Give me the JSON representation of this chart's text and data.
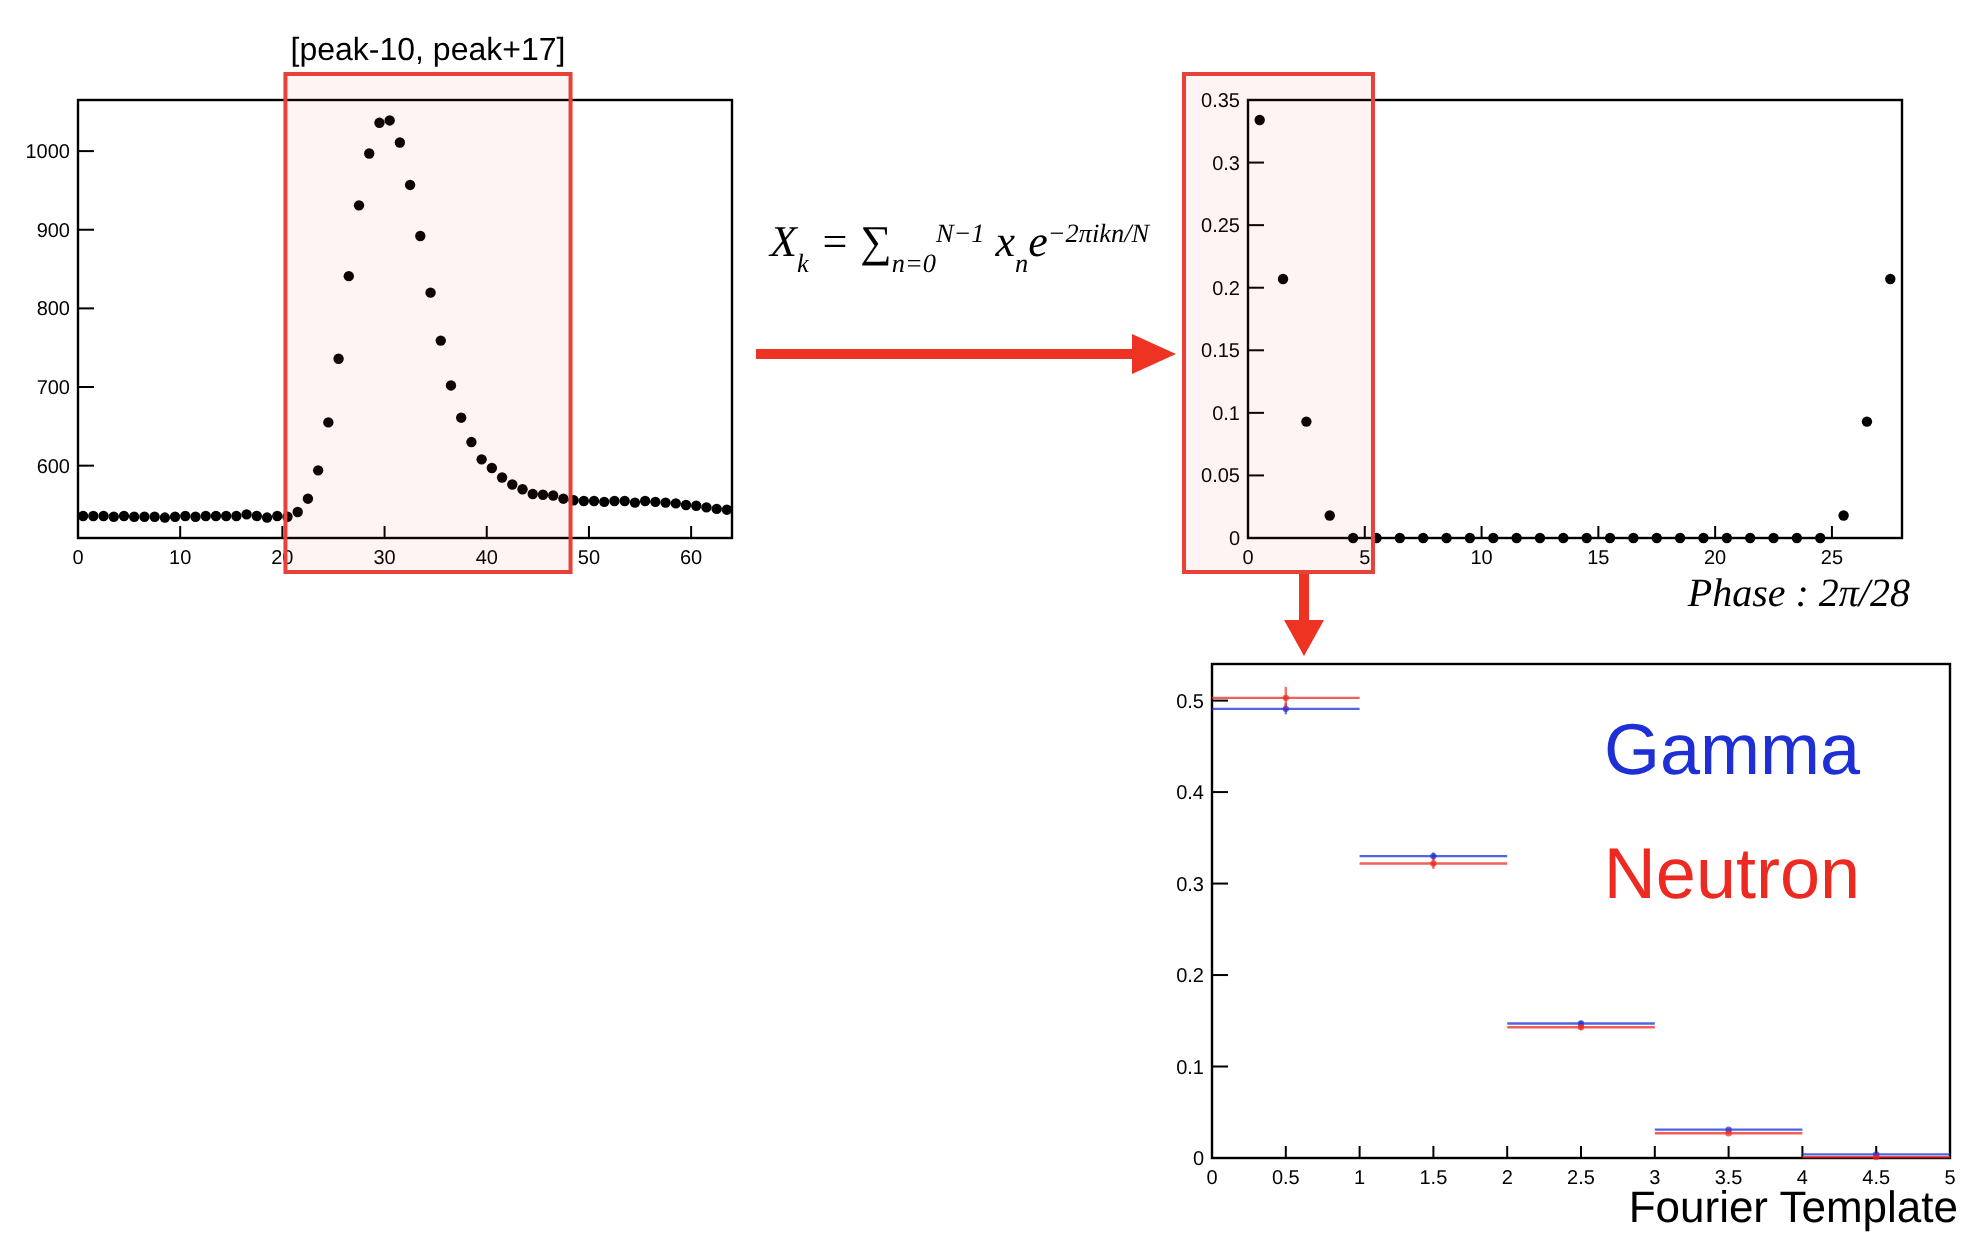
{
  "chart_data": [
    {
      "type": "scatter",
      "marker": "circle",
      "xlim": [
        0,
        64
      ],
      "ylim": [
        508,
        1065
      ],
      "xticks": [
        0,
        10,
        20,
        30,
        40,
        50,
        60
      ],
      "yticks": [
        600,
        700,
        800,
        900,
        1000
      ],
      "x": [
        0.5,
        1.5,
        2.5,
        3.5,
        4.5,
        5.5,
        6.5,
        7.5,
        8.5,
        9.5,
        10.5,
        11.5,
        12.5,
        13.5,
        14.5,
        15.5,
        16.5,
        17.5,
        18.5,
        19.5,
        20.5,
        21.5,
        22.5,
        23.5,
        24.5,
        25.5,
        26.5,
        27.5,
        28.5,
        29.5,
        30.5,
        31.5,
        32.5,
        33.5,
        34.5,
        35.5,
        36.5,
        37.5,
        38.5,
        39.5,
        40.5,
        41.5,
        42.5,
        43.5,
        44.5,
        45.5,
        46.5,
        47.5,
        48.5,
        49.5,
        50.5,
        51.5,
        52.5,
        53.5,
        54.5,
        55.5,
        56.5,
        57.5,
        58.5,
        59.5,
        60.5,
        61.5,
        62.5,
        63.5
      ],
      "series": [
        {
          "color": "#000000",
          "values": [
            536,
            536,
            536,
            535,
            536,
            535,
            535,
            535,
            534,
            535,
            536,
            535,
            536,
            536,
            536,
            536,
            538,
            536,
            534,
            536,
            535,
            541,
            558,
            594,
            655,
            736,
            841,
            931,
            997,
            1036,
            1039,
            1011,
            957,
            892,
            820,
            759,
            702,
            661,
            630,
            608,
            597,
            585,
            576,
            570,
            564,
            563,
            562,
            558,
            556,
            555,
            555,
            554,
            555,
            555,
            553,
            555,
            554,
            553,
            552,
            550,
            549,
            547,
            545,
            544
          ]
        }
      ],
      "bands": [
        {
          "axis": "x",
          "from": 20.3,
          "to": 48.2,
          "label": "[peak-10, peak+17]",
          "color": "#e8413a"
        }
      ]
    },
    {
      "type": "scatter",
      "marker": "circle",
      "xlim": [
        0,
        28
      ],
      "ylim": [
        0,
        0.35
      ],
      "xticks": [
        0,
        5,
        10,
        15,
        20,
        25
      ],
      "yticks": [
        0,
        0.05,
        0.1,
        0.15,
        0.2,
        0.25,
        0.3,
        0.35
      ],
      "xlabel": "Phase : 2π/28",
      "x": [
        0.5,
        1.5,
        2.5,
        3.5,
        4.5,
        5.5,
        6.5,
        7.5,
        8.5,
        9.5,
        10.5,
        11.5,
        12.5,
        13.5,
        14.5,
        15.5,
        16.5,
        17.5,
        18.5,
        19.5,
        20.5,
        21.5,
        22.5,
        23.5,
        24.5,
        25.5,
        26.5,
        27.5
      ],
      "series": [
        {
          "color": "#000000",
          "values": [
            0.334,
            0.207,
            0.093,
            0.018,
            0,
            0,
            0,
            0,
            0,
            0,
            0,
            0,
            0,
            0,
            0,
            0,
            0,
            0,
            0,
            0,
            0,
            0,
            0,
            0,
            0,
            0.018,
            0.093,
            0.207
          ]
        }
      ],
      "bands": [
        {
          "axis": "x",
          "from": 0,
          "to": 5.35,
          "color": "#e8413a"
        }
      ],
      "annotations": [
        "X$_{k}$ = ∑$_{n=0}$$^{N−1}$ x$_{n}$e$^{−2πikn/N}$"
      ]
    },
    {
      "type": "scatter",
      "marker": "circle",
      "xlim": [
        0,
        5
      ],
      "ylim": [
        0,
        0.54
      ],
      "xticks": [
        0,
        0.5,
        1,
        1.5,
        2,
        2.5,
        3,
        3.5,
        4,
        4.5,
        5
      ],
      "yticks": [
        0,
        0.1,
        0.2,
        0.3,
        0.4,
        0.5
      ],
      "xlabel": "Fourier Template",
      "x": [
        0.5,
        1.5,
        2.5,
        3.5,
        4.5
      ],
      "series": [
        {
          "name": "Gamma",
          "color": "#1e2fd6",
          "values": [
            0.491,
            0.33,
            0.147,
            0.031,
            0.004
          ],
          "xerrors": [
            0.5,
            0.5,
            0.5,
            0.5,
            0.5
          ],
          "errors": [
            0.006,
            0.004,
            0.003,
            null,
            null
          ]
        },
        {
          "name": "Neutron",
          "color": "#ec2a22",
          "values": [
            0.503,
            0.322,
            0.143,
            0.027,
            0.001
          ],
          "xerrors": [
            0.5,
            0.5,
            0.5,
            0.5,
            0.5
          ],
          "errors": [
            0.012,
            0.006,
            0.003,
            null,
            null
          ]
        }
      ]
    }
  ]
}
